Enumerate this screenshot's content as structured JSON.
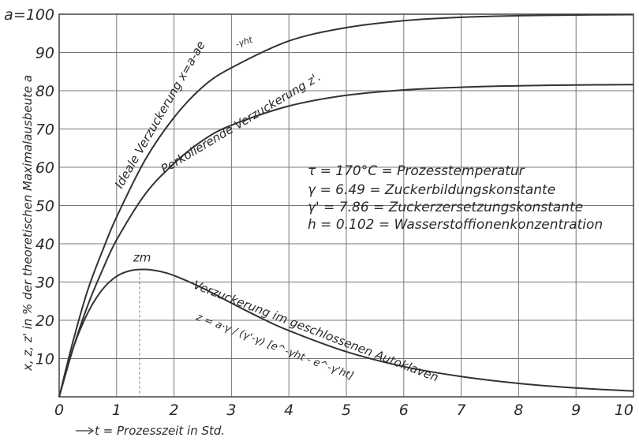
{
  "chart_data": {
    "type": "line",
    "title": "",
    "xlabel": "t = Prozesszeit in Std.",
    "ylabel": "x, z, z' in % der theoretischen Maximalausbeute a",
    "xlim": [
      0,
      10
    ],
    "ylim": [
      0,
      100
    ],
    "x_ticks": [
      "0",
      "1",
      "2",
      "3",
      "4",
      "5",
      "6",
      "7",
      "8",
      "9",
      "10"
    ],
    "y_ticks": [
      "10",
      "20",
      "30",
      "40",
      "50",
      "60",
      "70",
      "80",
      "90",
      "a=100"
    ],
    "grid": true,
    "series": [
      {
        "name": "Ideale Verzuckerung x = a - ae^-γht",
        "x": [
          0,
          0.25,
          0.5,
          0.75,
          1,
          1.5,
          2,
          2.5,
          3,
          4,
          5,
          6,
          7,
          8,
          9,
          10
        ],
        "y": [
          0,
          15,
          28,
          38,
          47,
          62,
          73,
          81,
          86,
          93,
          96.5,
          98.3,
          99.2,
          99.6,
          99.8,
          99.9
        ]
      },
      {
        "name": "Perkolierende Verzuckerung z'",
        "x": [
          0,
          0.25,
          0.5,
          0.75,
          1,
          1.5,
          2,
          2.5,
          3,
          4,
          5,
          6,
          7,
          8,
          9,
          10
        ],
        "y": [
          0,
          13,
          24,
          33,
          41,
          53,
          61,
          67,
          71,
          76,
          78.8,
          80.2,
          80.9,
          81.3,
          81.5,
          81.6
        ]
      },
      {
        "name": "Verzuckerung im geschlossenen Autoklaven",
        "x": [
          0,
          0.25,
          0.5,
          0.75,
          1,
          1.25,
          1.5,
          1.75,
          2,
          2.5,
          3,
          3.5,
          4,
          5,
          6,
          7,
          8,
          9,
          10
        ],
        "y": [
          0,
          13,
          22,
          28,
          31.5,
          33,
          33.3,
          32.8,
          31.7,
          28.4,
          24.5,
          20.7,
          17.3,
          11.8,
          7.9,
          5.3,
          3.5,
          2.3,
          1.5
        ]
      }
    ],
    "annotations": {
      "ideal_label": "Ideale Verzuckerung x=a-ae",
      "ideal_exp": "-γht",
      "perk_label": "Perkolierende Verzuckerung z'.",
      "auto_label": "Verzuckerung im geschlossenen Autoklaven",
      "auto_formula": "z = a·γ / (γ'-γ) [e^-γht - e^-γ'ht]",
      "zm_label": "zm",
      "zm_x": 1.4,
      "zm_y": 33.3
    },
    "legend_lines": [
      "τ = 170°C = Prozesstemperatur",
      "γ = 6.49   = Zuckerbildungskonstante",
      "γ' = 7.86  = Zuckerzersetzungskonstante",
      "h = 0.102  = Wasserstoffionenkonzentration"
    ],
    "legend_placement": "center-right"
  }
}
